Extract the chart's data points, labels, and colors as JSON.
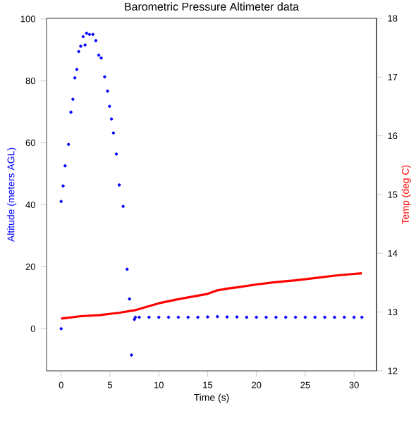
{
  "chart_data": {
    "type": "scatter",
    "title": "Barometric Pressure Altimeter data",
    "xlabel": "Time (s)",
    "ylabel": "Altitude (meters AGL)",
    "y2label": "Temp (deg C)",
    "xlim": [
      -1.5,
      32.3
    ],
    "ylim": [
      -13.6,
      100.2
    ],
    "y2lim": [
      12,
      18
    ],
    "xticks": [
      0,
      5,
      10,
      15,
      20,
      25,
      30
    ],
    "yticks": [
      0,
      20,
      40,
      60,
      80,
      100
    ],
    "y2ticks": [
      12,
      13,
      14,
      15,
      16,
      17,
      18
    ],
    "series": [
      {
        "color": "#0000ff",
        "marker": "circle",
        "x": [
          0,
          0,
          0.2,
          0.4,
          0.75,
          1.0,
          1.2,
          1.4,
          1.6,
          1.8,
          2.0,
          2.25,
          2.45,
          2.6,
          2.9,
          3.25,
          3.55,
          3.85,
          4.1,
          4.45,
          4.75,
          4.95,
          5.15,
          5.35,
          5.65,
          5.95,
          6.35,
          6.75,
          7.0,
          7.2,
          7.5,
          7.6,
          8,
          9,
          10,
          11,
          12,
          13,
          14,
          15,
          16,
          17,
          18,
          19,
          20,
          21,
          22,
          23,
          24,
          25,
          26,
          27,
          28,
          29,
          30,
          30.8
        ],
        "values": [
          0,
          41.1,
          46.1,
          52.6,
          59.5,
          69.9,
          74.1,
          81,
          83.7,
          89.5,
          91.2,
          94.3,
          91.6,
          95.4,
          95,
          95,
          93,
          88.3,
          87.4,
          81.3,
          76.7,
          71.8,
          67.7,
          63.2,
          56.4,
          46.4,
          39.5,
          19.2,
          9.6,
          -8.5,
          3.0,
          3.7,
          3.7,
          3.7,
          3.7,
          3.7,
          3.7,
          3.7,
          3.7,
          3.8,
          3.9,
          3.8,
          3.8,
          3.7,
          3.7,
          3.7,
          3.7,
          3.7,
          3.7,
          3.7,
          3.7,
          3.7,
          3.7,
          3.7,
          3.7,
          3.7
        ]
      },
      {
        "color": "#ff0000",
        "type": "line",
        "marker": "none",
        "axis": "y2",
        "x": [
          0,
          2,
          4,
          6,
          7.5,
          9,
          10,
          12,
          14,
          15,
          16,
          17,
          18,
          20,
          22,
          24,
          26,
          28,
          30,
          30.8
        ],
        "values": [
          12.89,
          12.93,
          12.95,
          12.99,
          13.03,
          13.1,
          13.15,
          13.22,
          13.28,
          13.31,
          13.37,
          13.4,
          13.42,
          13.47,
          13.51,
          13.54,
          13.58,
          13.62,
          13.65,
          13.66
        ]
      }
    ]
  }
}
